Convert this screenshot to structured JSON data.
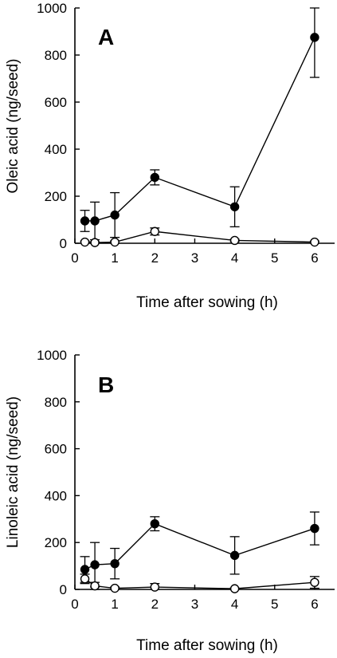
{
  "chart_data": [
    {
      "type": "line",
      "panel_label": "A",
      "xlabel": "Time after sowing (h)",
      "ylabel": "Oleic acid  (ng/seed)",
      "xlim": [
        0,
        6.5
      ],
      "ylim": [
        0,
        1000
      ],
      "x_ticks": [
        0,
        1,
        2,
        3,
        4,
        5,
        6
      ],
      "y_ticks": [
        0,
        200,
        400,
        600,
        800,
        1000
      ],
      "grid": false,
      "series": [
        {
          "marker": "filled-circle",
          "x": [
            0.25,
            0.5,
            1,
            2,
            4,
            6
          ],
          "values": [
            95,
            95,
            120,
            280,
            155,
            875
          ],
          "error": [
            45,
            80,
            95,
            32,
            85,
            170
          ]
        },
        {
          "marker": "open-circle",
          "x": [
            0.25,
            0.5,
            1,
            2,
            4,
            6
          ],
          "values": [
            5,
            3,
            5,
            50,
            12,
            5
          ],
          "error": [
            4,
            3,
            5,
            15,
            5,
            4
          ]
        }
      ]
    },
    {
      "type": "line",
      "panel_label": "B",
      "xlabel": "Time after sowing (h)",
      "ylabel": "Linoleic acid (ng/seed)",
      "xlim": [
        0,
        6.5
      ],
      "ylim": [
        0,
        1000
      ],
      "x_ticks": [
        0,
        1,
        2,
        3,
        4,
        5,
        6
      ],
      "y_ticks": [
        0,
        200,
        400,
        600,
        800,
        1000
      ],
      "grid": false,
      "series": [
        {
          "marker": "filled-circle",
          "x": [
            0.25,
            0.5,
            1,
            2,
            4,
            6
          ],
          "values": [
            85,
            105,
            110,
            280,
            145,
            260
          ],
          "error": [
            55,
            95,
            65,
            30,
            80,
            70
          ]
        },
        {
          "marker": "open-circle",
          "x": [
            0.25,
            0.5,
            1,
            2,
            4,
            6
          ],
          "values": [
            45,
            15,
            5,
            10,
            3,
            30
          ],
          "error": [
            20,
            15,
            5,
            15,
            3,
            25
          ]
        }
      ]
    }
  ]
}
